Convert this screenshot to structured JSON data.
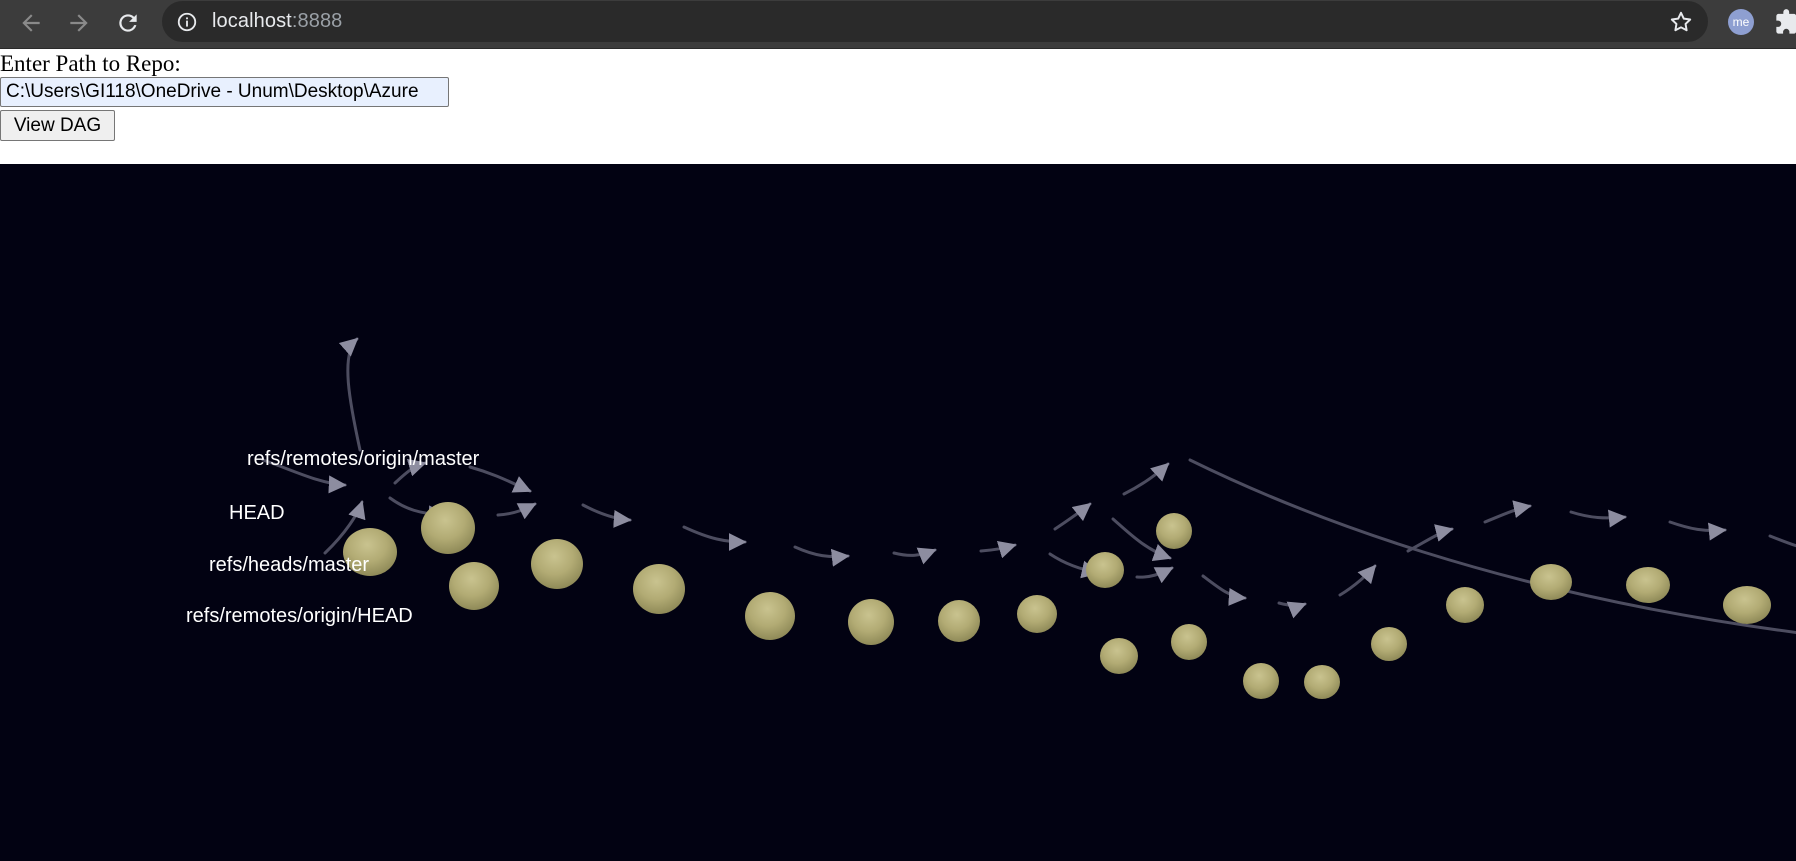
{
  "browser": {
    "url_host": "localhost",
    "url_port": ":8888",
    "avatar_text": "me",
    "icons": {
      "back": "arrow-left-icon",
      "forward": "arrow-right-icon",
      "reload": "reload-icon",
      "site_info": "info-icon",
      "bookmark": "star-icon",
      "extensions": "puzzle-icon"
    }
  },
  "form": {
    "label": "Enter Path to Repo:",
    "path_value": "C:\\Users\\GI118\\OneDrive - Unum\\Desktop\\Azure",
    "button_label": "View DAG"
  },
  "dag": {
    "background": "#020212",
    "node_color": "#b7b07a",
    "edge_color": "#5a5a6e",
    "refs": [
      {
        "id": "ref-remotes-origin-master",
        "text": "refs/remotes/origin/master"
      },
      {
        "id": "ref-head",
        "text": "HEAD"
      },
      {
        "id": "ref-heads-master",
        "text": "refs/heads/master"
      },
      {
        "id": "ref-remotes-origin-head",
        "text": "refs/remotes/origin/HEAD"
      }
    ]
  }
}
